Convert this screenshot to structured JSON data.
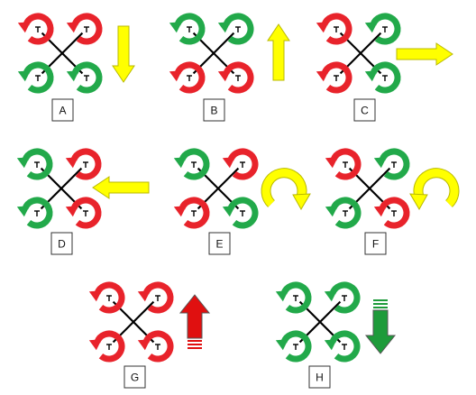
{
  "colors": {
    "red": "#e8232b",
    "green": "#22a94a",
    "yellow": "#ffff00",
    "yellow_stroke": "#b8b800",
    "arm": "#000000",
    "red_arrow": "#e01010",
    "green_arrow": "#1e9b3a"
  },
  "panels": [
    {
      "id": "A",
      "label": "A",
      "rotors": [
        "red",
        "red",
        "green",
        "green"
      ],
      "indicator": {
        "kind": "straight",
        "direction": "down",
        "color": "yellow"
      }
    },
    {
      "id": "B",
      "label": "B",
      "rotors": [
        "green",
        "green",
        "red",
        "red"
      ],
      "indicator": {
        "kind": "straight",
        "direction": "up",
        "color": "yellow"
      }
    },
    {
      "id": "C",
      "label": "C",
      "rotors": [
        "red",
        "green",
        "red",
        "green"
      ],
      "indicator": {
        "kind": "straight",
        "direction": "right",
        "color": "yellow"
      }
    },
    {
      "id": "D",
      "label": "D",
      "rotors": [
        "green",
        "red",
        "green",
        "red"
      ],
      "indicator": {
        "kind": "straight",
        "direction": "left",
        "color": "yellow"
      }
    },
    {
      "id": "E",
      "label": "E",
      "rotors": [
        "green",
        "red",
        "red",
        "green"
      ],
      "indicator": {
        "kind": "curved",
        "direction": "clockwise",
        "color": "yellow"
      }
    },
    {
      "id": "F",
      "label": "F",
      "rotors": [
        "red",
        "green",
        "green",
        "red"
      ],
      "indicator": {
        "kind": "curved",
        "direction": "counterclockwise",
        "color": "yellow"
      }
    },
    {
      "id": "G",
      "label": "G",
      "rotors": [
        "red",
        "red",
        "red",
        "red"
      ],
      "indicator": {
        "kind": "block",
        "direction": "up",
        "color": "red_arrow"
      }
    },
    {
      "id": "H",
      "label": "H",
      "rotors": [
        "green",
        "green",
        "green",
        "green"
      ],
      "indicator": {
        "kind": "block",
        "direction": "down",
        "color": "green_arrow"
      }
    }
  ]
}
